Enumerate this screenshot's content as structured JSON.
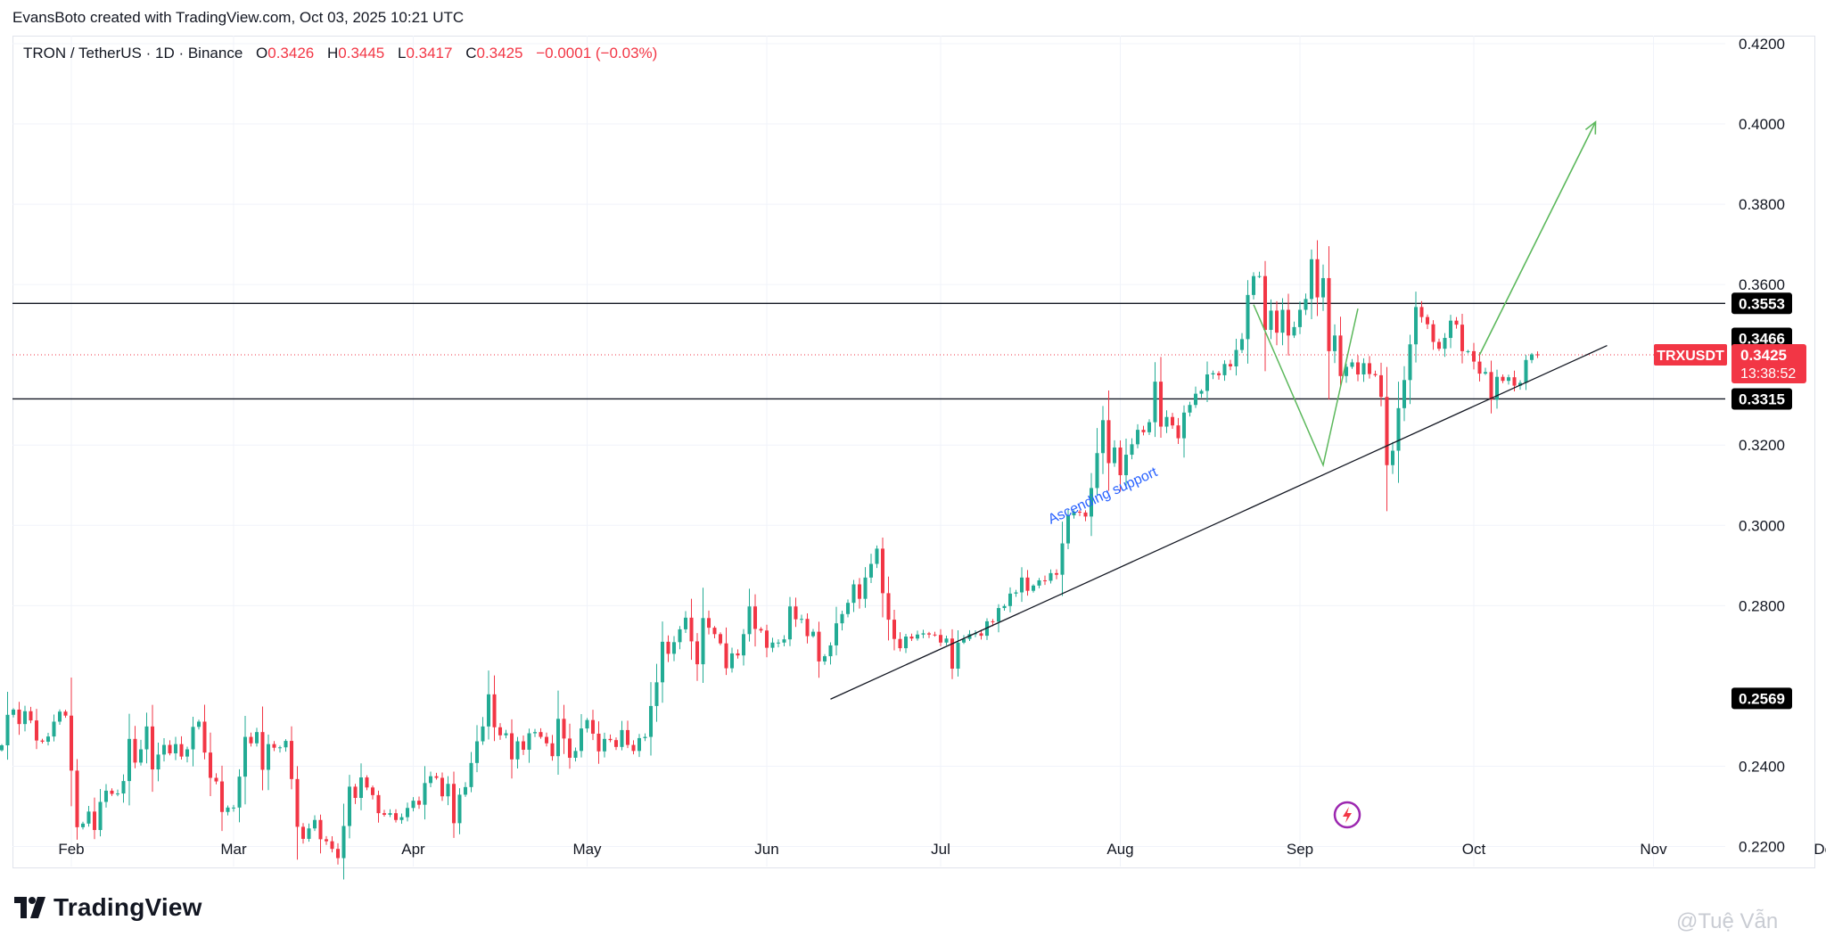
{
  "header": {
    "attribution": "EvansBoto created with TradingView.com, Oct 03, 2025 10:21 UTC"
  },
  "legend": {
    "symbol": "TRON / TetherUS · 1D · Binance",
    "o_label": "O",
    "o": "0.3426",
    "h_label": "H",
    "h": "0.3445",
    "l_label": "L",
    "l": "0.3417",
    "c_label": "C",
    "c": "0.3425",
    "change": "−0.0001 (−0.03%)"
  },
  "footer": {
    "brand": "TradingView",
    "watermark": "@Tuệ Vẫn"
  },
  "colors": {
    "up": "#22ab94",
    "down": "#f23645",
    "arrow": "#5cb85c",
    "annotation": "#2962ff",
    "label_bg": "#000000",
    "price_tag": "#f23645"
  },
  "chart_data": {
    "type": "candlestick",
    "symbol": "TRXUSDT",
    "x_ticks": [
      "Feb",
      "Mar",
      "Apr",
      "May",
      "Jun",
      "Jul",
      "Aug",
      "Sep",
      "Oct",
      "Nov",
      "Dec"
    ],
    "y_ticks": [
      "0.4200",
      "0.4000",
      "0.3800",
      "0.3600",
      "0.3200",
      "0.3000",
      "0.2800",
      "0.2400",
      "0.2200"
    ],
    "ylim": [
      0.215,
      0.422
    ],
    "levels": [
      {
        "label": "0.3553",
        "value": 0.3553,
        "line": true
      },
      {
        "label": "0.3466",
        "value": 0.3466,
        "line": false
      },
      {
        "label": "0.3315",
        "value": 0.3315,
        "line": true
      },
      {
        "label": "0.2569",
        "value": 0.2569,
        "line": false
      }
    ],
    "current": {
      "tag": "TRXUSDT",
      "price": "0.3425",
      "value": 0.3425,
      "countdown": "13:38:52"
    },
    "annotation": "Ascending support",
    "support_line": {
      "from": [
        "2025-06-12",
        0.2567
      ],
      "to": [
        "2025-10-24",
        0.3448
      ]
    },
    "projection": {
      "from": [
        "2025-10-02",
        0.3425
      ],
      "to": [
        "2025-10-22",
        0.4005
      ]
    },
    "swing_path": [
      [
        "2025-08-24",
        0.355
      ],
      [
        "2025-09-05",
        0.315
      ],
      [
        "2025-09-11",
        0.354
      ]
    ],
    "daily_closes": {
      "start": "2025-01-20",
      "values": [
        0.2452,
        0.2528,
        0.2541,
        0.2505,
        0.2537,
        0.2514,
        0.2464,
        0.2461,
        0.2474,
        0.2511,
        0.2536,
        0.2526,
        0.2389,
        0.2248,
        0.2257,
        0.2287,
        0.2241,
        0.2311,
        0.2339,
        0.2331,
        0.2332,
        0.2363,
        0.2468,
        0.2409,
        0.2442,
        0.2499,
        0.2392,
        0.2429,
        0.2453,
        0.2432,
        0.2455,
        0.2424,
        0.2442,
        0.2498,
        0.2511,
        0.2434,
        0.2371,
        0.2362,
        0.2286,
        0.2297,
        0.2297,
        0.2374,
        0.2473,
        0.2457,
        0.2485,
        0.2391,
        0.2455,
        0.2446,
        0.2447,
        0.2463,
        0.2368,
        0.2249,
        0.2219,
        0.2245,
        0.2266,
        0.2218,
        0.2213,
        0.2194,
        0.2171,
        0.2251,
        0.2349,
        0.2321,
        0.2372,
        0.2347,
        0.2328,
        0.2283,
        0.2279,
        0.2283,
        0.2266,
        0.2273,
        0.2296,
        0.2314,
        0.2304,
        0.2358,
        0.2375,
        0.2371,
        0.2325,
        0.2356,
        0.2258,
        0.2329,
        0.2348,
        0.2408,
        0.2462,
        0.2499,
        0.2579,
        0.2497,
        0.2477,
        0.2482,
        0.2417,
        0.2462,
        0.2441,
        0.2482,
        0.2485,
        0.2473,
        0.2457,
        0.2425,
        0.2518,
        0.2469,
        0.2421,
        0.2438,
        0.2494,
        0.2515,
        0.2481,
        0.2437,
        0.2468,
        0.2465,
        0.2448,
        0.249,
        0.2453,
        0.2438,
        0.247,
        0.2473,
        0.255,
        0.2609,
        0.271,
        0.268,
        0.2709,
        0.2741,
        0.277,
        0.2711,
        0.2654,
        0.2769,
        0.2745,
        0.2729,
        0.2706,
        0.2644,
        0.2681,
        0.2676,
        0.2729,
        0.2798,
        0.2742,
        0.2738,
        0.2695,
        0.2708,
        0.2708,
        0.2716,
        0.2798,
        0.2766,
        0.2767,
        0.2724,
        0.2735,
        0.2661,
        0.2674,
        0.2701,
        0.2756,
        0.2779,
        0.2807,
        0.2853,
        0.2817,
        0.287,
        0.2904,
        0.2942,
        0.2831,
        0.2765,
        0.2717,
        0.2694,
        0.2723,
        0.2718,
        0.2728,
        0.2731,
        0.2728,
        0.2727,
        0.2708,
        0.2718,
        0.2643,
        0.2708,
        0.2717,
        0.2729,
        0.2731,
        0.2725,
        0.2761,
        0.276,
        0.2794,
        0.2799,
        0.283,
        0.2833,
        0.287,
        0.2837,
        0.285,
        0.2863,
        0.2862,
        0.2881,
        0.2877,
        0.2955,
        0.3025,
        0.3034,
        0.3032,
        0.3022,
        0.3093,
        0.318,
        0.3262,
        0.3155,
        0.3194,
        0.3125,
        0.3176,
        0.3202,
        0.3238,
        0.3232,
        0.3257,
        0.3358,
        0.3246,
        0.327,
        0.3249,
        0.3217,
        0.3281,
        0.33,
        0.3328,
        0.3335,
        0.3376,
        0.3379,
        0.3374,
        0.3402,
        0.3396,
        0.3437,
        0.3464,
        0.3574,
        0.3621,
        0.3621,
        0.3487,
        0.3535,
        0.348,
        0.3537,
        0.3473,
        0.3494,
        0.3537,
        0.3564,
        0.3663,
        0.3568,
        0.3616,
        0.3434,
        0.3473,
        0.3372,
        0.3395,
        0.3406,
        0.3376,
        0.3404,
        0.3377,
        0.3374,
        0.332,
        0.315,
        0.3186,
        0.3292,
        0.3362,
        0.3451,
        0.3544,
        0.3519,
        0.3501,
        0.3457,
        0.344,
        0.3467,
        0.351,
        0.35,
        0.3434,
        0.3434,
        0.3408,
        0.3378,
        0.3382,
        0.3313,
        0.337,
        0.336,
        0.3369,
        0.3348,
        0.3355,
        0.3412,
        0.3426,
        0.3425
      ]
    }
  }
}
